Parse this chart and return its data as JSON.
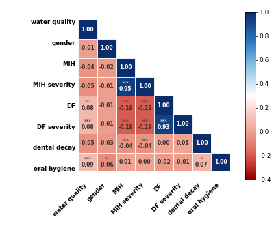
{
  "labels": [
    "water quality",
    "gender",
    "MIH",
    "MIH severity",
    "DF",
    "DF severity",
    "dental decay",
    "oral hygiene"
  ],
  "corr_matrix": [
    [
      1.0,
      null,
      null,
      null,
      null,
      null,
      null,
      null
    ],
    [
      -0.01,
      1.0,
      null,
      null,
      null,
      null,
      null,
      null
    ],
    [
      -0.04,
      -0.02,
      1.0,
      null,
      null,
      null,
      null,
      null
    ],
    [
      -0.05,
      -0.01,
      0.95,
      1.0,
      null,
      null,
      null,
      null
    ],
    [
      0.08,
      -0.01,
      -0.19,
      -0.19,
      1.0,
      null,
      null,
      null
    ],
    [
      0.08,
      -0.01,
      -0.19,
      -0.19,
      0.93,
      1.0,
      null,
      null
    ],
    [
      -0.05,
      -0.03,
      -0.04,
      -0.04,
      0.0,
      0.01,
      1.0,
      null
    ],
    [
      0.09,
      -0.06,
      0.01,
      0.0,
      -0.02,
      -0.01,
      0.07,
      1.0
    ]
  ],
  "significance": [
    [
      "",
      null,
      null,
      null,
      null,
      null,
      null,
      null
    ],
    [
      "",
      "",
      null,
      null,
      null,
      null,
      null,
      null
    ],
    [
      "",
      "",
      "",
      null,
      null,
      null,
      null,
      null
    ],
    [
      "",
      "",
      "***",
      "",
      null,
      null,
      null,
      null
    ],
    [
      "**",
      "",
      "***",
      "***",
      "",
      null,
      null,
      null
    ],
    [
      "***",
      "",
      "***",
      "***",
      "***",
      "",
      null,
      null
    ],
    [
      "",
      "",
      "***",
      "***",
      "",
      "",
      "",
      null
    ],
    [
      "***",
      "*",
      "",
      "",
      "",
      "",
      "*",
      ""
    ]
  ],
  "vmin": -0.4,
  "vmax": 1.0,
  "fig_bg": "#ffffff",
  "cbar_ticks": [
    1.0,
    0.8,
    0.6,
    0.4,
    0.2,
    0.0,
    -0.2,
    -0.4
  ]
}
